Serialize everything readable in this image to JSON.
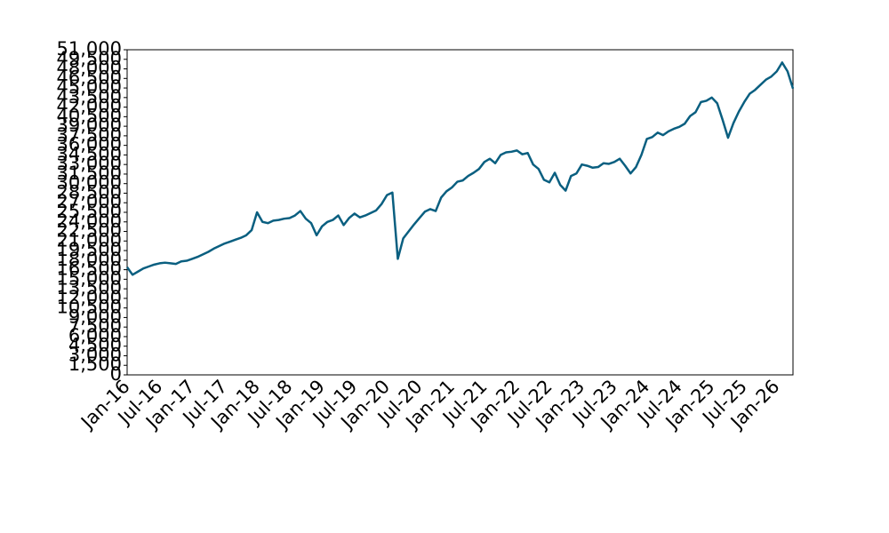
{
  "chart_data": {
    "type": "line",
    "categories": [
      "Jan-16",
      null,
      null,
      null,
      null,
      null,
      "Jul-16",
      null,
      null,
      null,
      null,
      null,
      "Jan-17",
      null,
      null,
      null,
      null,
      null,
      "Jul-17",
      null,
      null,
      null,
      null,
      null,
      "Jan-18",
      null,
      null,
      null,
      null,
      null,
      "Jul-18",
      null,
      null,
      null,
      null,
      null,
      "Jan-19",
      null,
      null,
      null,
      null,
      null,
      "Jul-19",
      null,
      null,
      null,
      null,
      null,
      "Jan-20",
      null,
      null,
      null,
      null,
      null,
      "Jul-20",
      null,
      null,
      null,
      null,
      null,
      "Jan-21",
      null,
      null,
      null,
      null,
      null,
      "Jul-21",
      null,
      null,
      null,
      null,
      null,
      "Jan-22",
      null,
      null,
      null,
      null,
      null,
      "Jul-22",
      null,
      null,
      null,
      null,
      null,
      "Jan-23",
      null,
      null,
      null,
      null,
      null,
      "Jul-23",
      null,
      null,
      null,
      null,
      null,
      "Jan-24",
      null,
      null,
      null,
      null,
      null,
      "Jul-24",
      null,
      null,
      null,
      null,
      null,
      "Jan-25",
      null,
      null,
      null,
      null,
      null,
      "Jul-25",
      null,
      null,
      null,
      null,
      null,
      "Jan-26",
      null,
      null,
      null
    ],
    "series": [
      {
        "color": "#0a5f80",
        "values": [
          16900,
          15700,
          16200,
          16700,
          17000,
          17300,
          17500,
          17600,
          17500,
          17400,
          17800,
          17900,
          18200,
          18500,
          18900,
          19300,
          19800,
          20200,
          20600,
          20900,
          21200,
          21500,
          21900,
          22700,
          25500,
          24000,
          23800,
          24200,
          24300,
          24500,
          24600,
          25000,
          25700,
          24500,
          23800,
          21900,
          23300,
          24000,
          24300,
          25000,
          23500,
          24600,
          25300,
          24700,
          25000,
          25400,
          25800,
          26800,
          28200,
          28600,
          18200,
          21400,
          22500,
          23600,
          24600,
          25600,
          26000,
          25700,
          27800,
          28800,
          29400,
          30300,
          30500,
          31200,
          31700,
          32300,
          33400,
          33900,
          33200,
          34500,
          34900,
          35000,
          35200,
          34600,
          34800,
          33000,
          32300,
          30600,
          30200,
          31700,
          29800,
          28900,
          31200,
          31600,
          33000,
          32800,
          32500,
          32600,
          33200,
          33100,
          33400,
          33900,
          32800,
          31600,
          32600,
          34500,
          37000,
          37300,
          38000,
          37600,
          38200,
          38600,
          38900,
          39400,
          40600,
          41200,
          42800,
          43000,
          43500,
          42600,
          40000,
          37200,
          39500,
          41300,
          42800,
          44100,
          44700,
          45500,
          46300,
          46800,
          47600,
          49000,
          47600,
          44900
        ]
      }
    ],
    "ylim": [
      0,
      51000
    ],
    "yticks": [
      0,
      {
        "value": 1500,
        "label": "1,500"
      },
      {
        "value": 3000,
        "label": "3,000"
      },
      {
        "value": 4500,
        "label": "4,500"
      },
      {
        "value": 6000,
        "label": "6,000"
      },
      {
        "value": 7500,
        "label": "7,500"
      },
      {
        "value": 9000,
        "label": "9,000"
      },
      {
        "value": 10500,
        "label": "10,500"
      },
      {
        "value": 12000,
        "label": "12,000"
      },
      {
        "value": 13500,
        "label": "13,500"
      },
      {
        "value": 15000,
        "label": "15,000"
      },
      {
        "value": 16500,
        "label": "16,500"
      },
      {
        "value": 18000,
        "label": "18,000"
      },
      {
        "value": 19500,
        "label": "19,500"
      },
      {
        "value": 21000,
        "label": "21,000"
      },
      {
        "value": 22500,
        "label": "22,500"
      },
      {
        "value": 24000,
        "label": "24,000"
      },
      {
        "value": 25500,
        "label": "25,500"
      },
      {
        "value": 27000,
        "label": "27,000"
      },
      {
        "value": 28500,
        "label": "28,500"
      },
      {
        "value": 30000,
        "label": "30,000"
      },
      {
        "value": 31500,
        "label": "31,500"
      },
      {
        "value": 33000,
        "label": "33,000"
      },
      {
        "value": 34500,
        "label": "34,500"
      },
      {
        "value": 36000,
        "label": "36,000"
      },
      {
        "value": 37500,
        "label": "37,500"
      },
      {
        "value": 39000,
        "label": "39,000"
      },
      {
        "value": 40500,
        "label": "40,500"
      },
      {
        "value": 42000,
        "label": "42,000"
      },
      {
        "value": 43500,
        "label": "43,500"
      },
      {
        "value": 45000,
        "label": "45,000"
      },
      {
        "value": 46500,
        "label": "46,500"
      },
      {
        "value": 48000,
        "label": "48,000"
      },
      {
        "value": 49500,
        "label": "49,500"
      },
      {
        "value": 51000,
        "label": "51,000"
      }
    ],
    "grid": false
  }
}
